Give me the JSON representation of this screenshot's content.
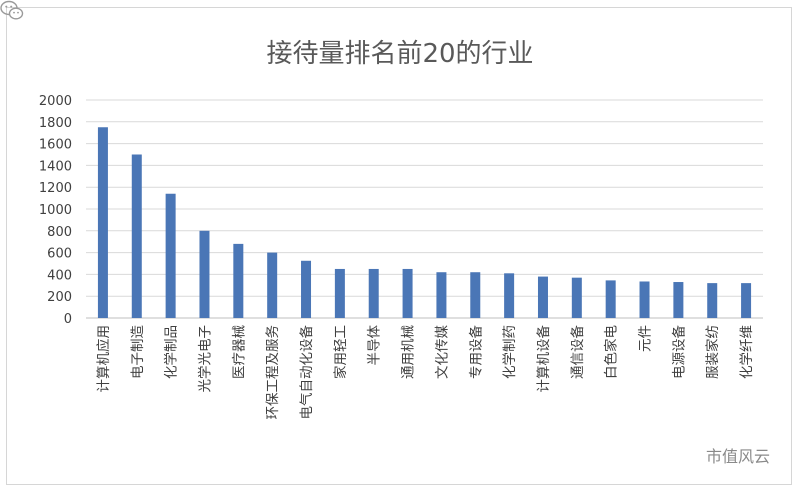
{
  "chart_data": {
    "type": "bar",
    "title": "接待量排名前20的行业",
    "categories": [
      "计算机应用",
      "电子制造",
      "化学制品",
      "光学光电子",
      "医疗器械",
      "环保工程及服务",
      "电气自动化设备",
      "家用轻工",
      "半导体",
      "通用机械",
      "文化传媒",
      "专用设备",
      "化学制药",
      "计算机设备",
      "通信设备",
      "白色家电",
      "元件",
      "电源设备",
      "服装家纺",
      "化学纤维"
    ],
    "values": [
      1750,
      1500,
      1140,
      800,
      680,
      600,
      525,
      450,
      450,
      450,
      420,
      420,
      410,
      380,
      370,
      345,
      335,
      330,
      320,
      320
    ],
    "ylim": [
      0,
      2000
    ],
    "yticks": [
      0,
      200,
      400,
      600,
      800,
      1000,
      1200,
      1400,
      1600,
      1800,
      2000
    ],
    "grid": true,
    "bar_color": "#4a76b6",
    "grid_color": "#d9d9d9"
  },
  "watermark": {
    "text": "市值风云",
    "icon": "wechat-icon"
  }
}
